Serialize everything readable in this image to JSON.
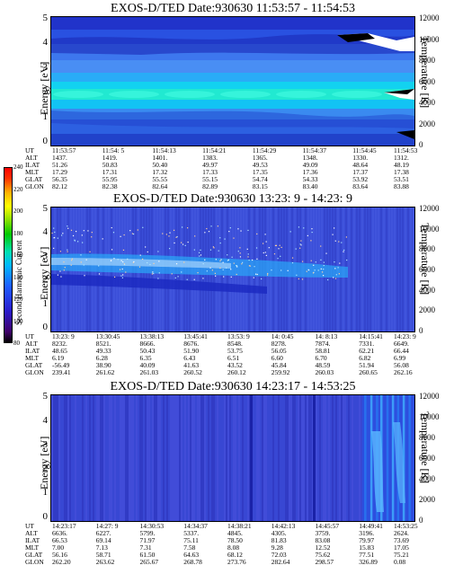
{
  "panels": [
    {
      "title": "EXOS-D/TED   Date:930630  11:53:57 - 11:54:53",
      "ylabel": "Energy [eV]",
      "y2label": "Temperature [K]",
      "ephemeris": {
        "labels": [
          "UT",
          "ALT",
          "ILAT",
          "MLT",
          "GLAT",
          "GLON"
        ],
        "columns": [
          [
            "11:53:57",
            "1437.",
            "51.26",
            "17.29",
            "56.35",
            "82.12"
          ],
          [
            "11:54: 5",
            "1419.",
            "50.83",
            "17.31",
            "55.95",
            "82.38"
          ],
          [
            "11:54:13",
            "1401.",
            "50.40",
            "17.32",
            "55.55",
            "82.64"
          ],
          [
            "11:54:21",
            "1383.",
            "49.97",
            "17.33",
            "55.15",
            "82.89"
          ],
          [
            "11:54:29",
            "1365.",
            "49.53",
            "17.35",
            "54.74",
            "83.15"
          ],
          [
            "11:54:37",
            "1348.",
            "49.09",
            "17.36",
            "54.33",
            "83.40"
          ],
          [
            "11:54:45",
            "1330.",
            "48.64",
            "17.37",
            "53.92",
            "83.64"
          ],
          [
            "11:54:53",
            "1312.",
            "48.19",
            "17.38",
            "53.51",
            "83.88"
          ]
        ]
      }
    },
    {
      "title": "EXOS-D/TED   Date:930630  13:23: 9 - 14:23: 9",
      "ylabel": "Energy [eV]",
      "y2label": "Temperature [K]",
      "ephemeris": {
        "labels": [
          "UT",
          "ALT",
          "ILAT",
          "MLT",
          "GLAT",
          "GLON"
        ],
        "columns": [
          [
            "13:23: 9",
            "8232.",
            "48.65",
            "6.19",
            "-56.49",
            "239.41"
          ],
          [
            "13:30:45",
            "8521.",
            "49.33",
            "6.28",
            "38.90",
            "261.62"
          ],
          [
            "13:38:13",
            "8666.",
            "50.43",
            "6.35",
            "40.09",
            "261.03"
          ],
          [
            "13:45:41",
            "8676.",
            "51.90",
            "6.43",
            "41.63",
            "260.52"
          ],
          [
            "13:53: 9",
            "8548.",
            "53.75",
            "6.51",
            "43.52",
            "260.12"
          ],
          [
            "14: 0:45",
            "8278.",
            "56.05",
            "6.60",
            "45.84",
            "259.92"
          ],
          [
            "14: 8:13",
            "7874.",
            "58.81",
            "6.70",
            "48.59",
            "260.03"
          ],
          [
            "14:15:41",
            "7331.",
            "62.21",
            "6.82",
            "51.94",
            "260.65"
          ],
          [
            "14:23: 9",
            "6649.",
            "66.44",
            "6.99",
            "56.08",
            "262.16"
          ]
        ]
      }
    },
    {
      "title": "EXOS-D/TED   Date:930630  14:23:17 - 14:53:25",
      "ylabel": "Energy [eV]",
      "y2label": "Temperature [K]",
      "ephemeris": {
        "labels": [
          "UT",
          "ALT",
          "ILAT",
          "MLT",
          "GLAT",
          "GLON"
        ],
        "columns": [
          [
            "14:23:17",
            "6636.",
            "66.53",
            "7.00",
            "56.16",
            "262.20"
          ],
          [
            "14:27: 9",
            "6227.",
            "69.14",
            "7.13",
            "58.71",
            "263.62"
          ],
          [
            "14:30:53",
            "5799.",
            "71.97",
            "7.31",
            "61.50",
            "265.67"
          ],
          [
            "14:34:37",
            "5337.",
            "75.11",
            "7.58",
            "64.63",
            "268.78"
          ],
          [
            "14:38:21",
            "4845.",
            "78.50",
            "8.08",
            "68.12",
            "273.76"
          ],
          [
            "14:42:13",
            "4305.",
            "81.83",
            "9.28",
            "72.03",
            "282.64"
          ],
          [
            "14:45:57",
            "3759.",
            "83.08",
            "12.52",
            "75.62",
            "298.57"
          ],
          [
            "14:49:41",
            "3196.",
            "79.97",
            "15.83",
            "77.51",
            "326.89"
          ],
          [
            "14:53:25",
            "2624.",
            "73.69",
            "17.05",
            "75.21",
            "0.08"
          ]
        ]
      }
    }
  ],
  "colorbar": {
    "label": "Second Harmonic Current",
    "ticks": [
      "240",
      "220",
      "200",
      "180",
      "160",
      "140",
      "120",
      "100",
      "80"
    ]
  },
  "chart_data": [
    {
      "type": "heatmap",
      "title": "EXOS-D/TED   Date:930630  11:53:57 - 11:54:53",
      "ylabel": "Energy [eV]",
      "y2label": "Temperature [K]",
      "ylim": [
        0,
        5
      ],
      "y2lim": [
        0,
        12000
      ],
      "yticks": [
        "0",
        "1",
        "2",
        "3",
        "4",
        "5"
      ],
      "y2ticks": [
        "0",
        "2000",
        "4000",
        "6000",
        "8000",
        "10000",
        "12000"
      ],
      "x": [
        "11:53:57",
        "11:54: 5",
        "11:54:13",
        "11:54:21",
        "11:54:29",
        "11:54:37",
        "11:54:45",
        "11:54:53"
      ]
    },
    {
      "type": "heatmap",
      "title": "EXOS-D/TED   Date:930630  13:23: 9 - 14:23: 9",
      "ylabel": "Energy [eV]",
      "y2label": "Temperature [K]",
      "ylim": [
        0,
        5
      ],
      "y2lim": [
        0,
        12000
      ],
      "yticks": [
        "0",
        "1",
        "2",
        "3",
        "4",
        "5"
      ],
      "y2ticks": [
        "0",
        "2000",
        "4000",
        "6000",
        "8000",
        "10000",
        "12000"
      ],
      "x": [
        "13:23: 9",
        "13:30:45",
        "13:38:13",
        "13:45:41",
        "13:53: 9",
        "14: 0:45",
        "14: 8:13",
        "14:15:41",
        "14:23: 9"
      ]
    },
    {
      "type": "heatmap",
      "title": "EXOS-D/TED   Date:930630  14:23:17 - 14:53:25",
      "ylabel": "Energy [eV]",
      "y2label": "Temperature [K]",
      "ylim": [
        0,
        5
      ],
      "y2lim": [
        0,
        12000
      ],
      "yticks": [
        "0",
        "1",
        "2",
        "3",
        "4",
        "5"
      ],
      "y2ticks": [
        "0",
        "2000",
        "4000",
        "6000",
        "8000",
        "10000",
        "12000"
      ],
      "x": [
        "14:23:17",
        "14:27: 9",
        "14:30:53",
        "14:34:37",
        "14:38:21",
        "14:42:13",
        "14:45:57",
        "14:49:41",
        "14:53:25"
      ]
    }
  ]
}
